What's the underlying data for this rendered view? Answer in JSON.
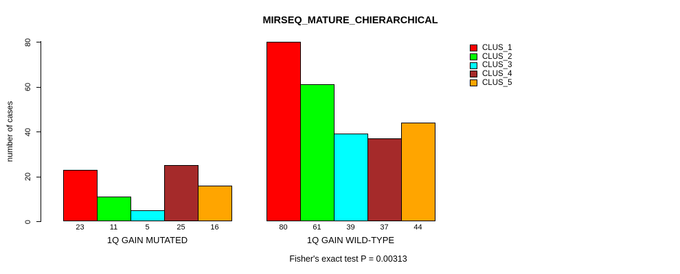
{
  "chart_data": {
    "type": "bar",
    "title": "MIRSEQ_MATURE_CHIERARCHICAL",
    "ylabel": "number of cases",
    "xlabel": "",
    "ylim": [
      0,
      80
    ],
    "yticks": [
      0,
      20,
      40,
      60,
      80
    ],
    "grid": false,
    "legend_position": "right-inside",
    "categories": [
      "1Q GAIN MUTATED",
      "1Q GAIN WILD-TYPE"
    ],
    "series": [
      {
        "name": "CLUS_1",
        "color": "#FF0000",
        "values": [
          23,
          80
        ]
      },
      {
        "name": "CLUS_2",
        "color": "#00FF00",
        "values": [
          11,
          61
        ]
      },
      {
        "name": "CLUS_3",
        "color": "#00FFFF",
        "values": [
          5,
          39
        ]
      },
      {
        "name": "CLUS_4",
        "color": "#A52A2A",
        "values": [
          25,
          37
        ]
      },
      {
        "name": "CLUS_5",
        "color": "#FFA500",
        "values": [
          16,
          44
        ]
      }
    ],
    "bar_value_labels_shown": true,
    "annotation": "Fisher's exact test P = 0.00313"
  }
}
